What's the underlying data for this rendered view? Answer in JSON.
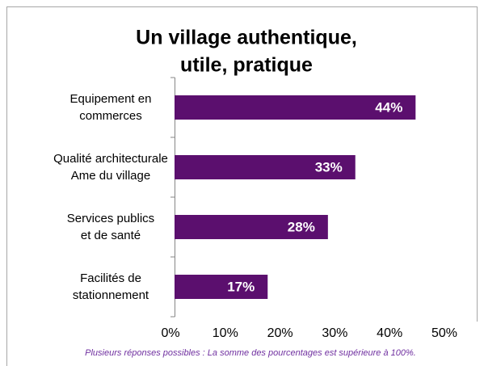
{
  "chart_data": {
    "type": "barh",
    "title": [
      "Un village authentique,",
      "utile, pratique"
    ],
    "categories": [
      [
        "Equipement en",
        "commerces"
      ],
      [
        "Qualité architecturale",
        "Ame du village"
      ],
      [
        "Services publics",
        "et de santé"
      ],
      [
        "Facilités de",
        "stationnement"
      ]
    ],
    "values": [
      44,
      33,
      28,
      17
    ],
    "value_labels": [
      "44%",
      "33%",
      "28%",
      "17%"
    ],
    "color": "#5b0f6e",
    "xlim": [
      0,
      50
    ],
    "xticks": [
      {
        "value": 0,
        "label": "0%"
      },
      {
        "value": 10,
        "label": "10%"
      },
      {
        "value": 20,
        "label": "20%"
      },
      {
        "value": 30,
        "label": "30%"
      },
      {
        "value": 40,
        "label": "40%"
      },
      {
        "value": 50,
        "label": "50%"
      }
    ],
    "note": "Plusieurs réponses possibles : La somme des pourcentages est supérieure à 100%."
  }
}
